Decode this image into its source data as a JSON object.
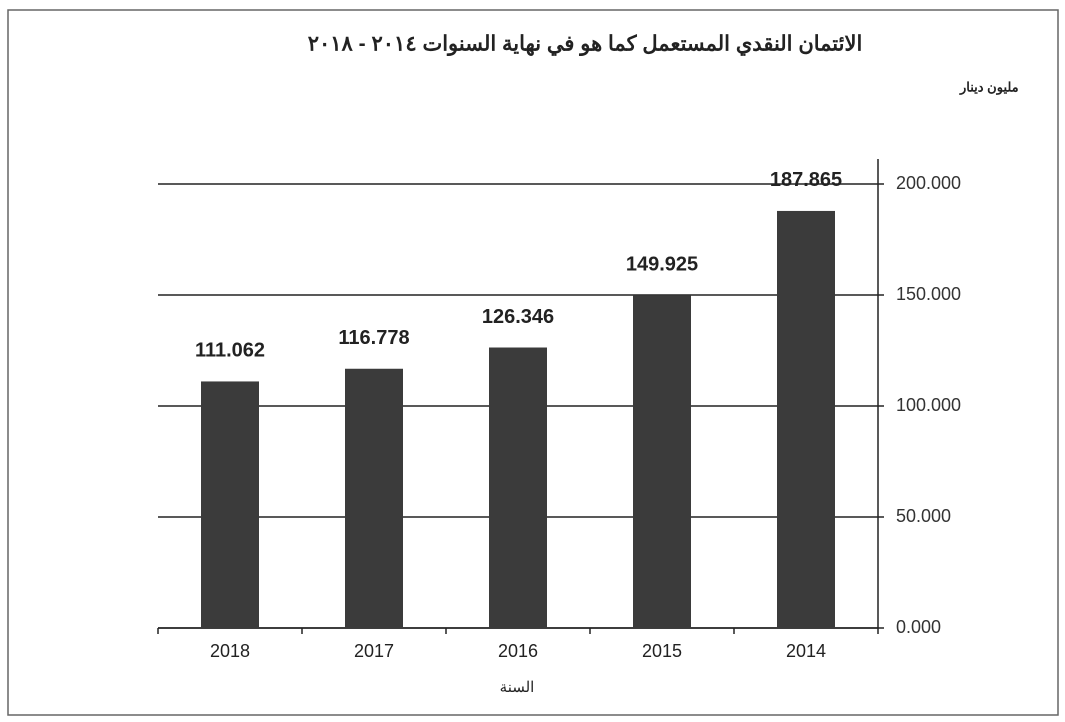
{
  "chart_data": {
    "type": "bar",
    "title": "الائتمان النقدي  المستعمل كما هو في نهاية السنوات ٢٠١٤ - ٢٠١٨",
    "subtitle": "مليون دينار",
    "x_label": "السنة",
    "categories": [
      "2018",
      "2017",
      "2016",
      "2015",
      "2014"
    ],
    "values": [
      111.062,
      116.778,
      126.346,
      149.925,
      187.865
    ],
    "color": "#3b3b3b",
    "ylim": [
      0,
      200
    ],
    "yticks": [
      {
        "value": 0,
        "label": "0.000"
      },
      {
        "value": 50,
        "label": "50.000"
      },
      {
        "value": 100,
        "label": "100.000"
      },
      {
        "value": 150,
        "label": "150.000"
      },
      {
        "value": 200,
        "label": "200.000"
      }
    ],
    "grid": true,
    "y_axis_side": "right"
  }
}
